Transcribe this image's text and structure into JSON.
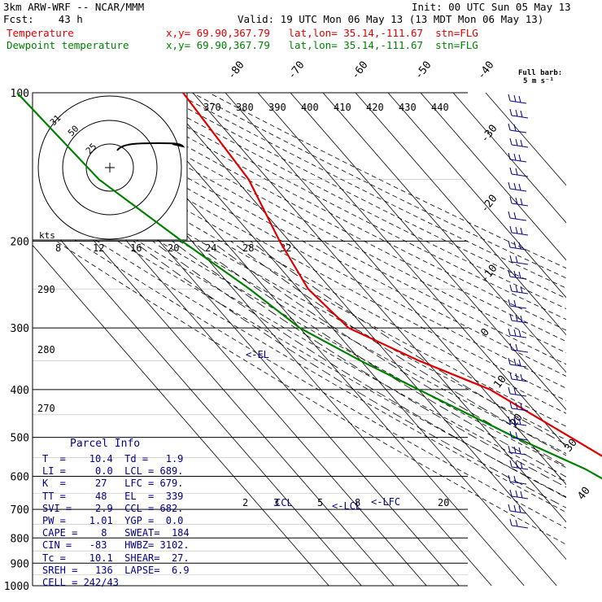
{
  "header": {
    "line1_left": "3km ARW-WRF -- NCAR/MMM",
    "line1_right": "Init: 00 UTC Sun 05 May 13",
    "line2_left": "Fcst:    43 h",
    "line2_right": "Valid: 19 UTC Mon 06 May 13 (13 MDT Mon 06 May 13)",
    "temp_label": "Temperature",
    "temp_info": "x,y= 69.90,367.79   lat,lon= 35.14,-111.67  stn=FLG",
    "dew_label": "Dewpoint temperature",
    "dew_info": "x,y= 69.90,367.79   lat,lon= 35.14,-111.67  stn=FLG",
    "barb_title": "Full barb:",
    "barb_unit": "5 m s⁻¹"
  },
  "colors": {
    "temperature": "#e00000",
    "dewpoint": "#008000",
    "parcel": "#00008b",
    "hodograph": "#000000"
  },
  "chart_data": {
    "type": "line",
    "diagram": "skew-T log-p",
    "pressure_levels": [
      100,
      200,
      300,
      400,
      500,
      600,
      700,
      800,
      900,
      1000
    ],
    "pressure_labels": [
      "100",
      "200",
      "300",
      "400",
      "500",
      "600",
      "700",
      "800",
      "900",
      "1000"
    ],
    "ylim": [
      1000,
      100
    ],
    "isotherm_labels": [
      "-80",
      "-70",
      "-60",
      "-50",
      "-40",
      "-30",
      "-20",
      "-10",
      "0",
      "10",
      "20",
      "30",
      "40"
    ],
    "theta_labels": [
      "370",
      "380",
      "390",
      "400",
      "410",
      "420",
      "430",
      "440"
    ],
    "theta_lower_labels": [
      "290",
      "280",
      "270"
    ],
    "mixing_ratio_labels": [
      "2",
      "3",
      "5",
      "8",
      "20"
    ],
    "speed_labels_unit": "kts",
    "speed_labels": [
      "8",
      "12",
      "16",
      "20",
      "24",
      "28",
      "32"
    ],
    "series": [
      {
        "name": "Temperature",
        "color": "#e00000",
        "points": [
          [
            -43,
            100
          ],
          [
            -46,
            150
          ],
          [
            -53,
            200
          ],
          [
            -57,
            250
          ],
          [
            -55,
            300
          ],
          [
            -42,
            350
          ],
          [
            -28,
            400
          ],
          [
            -16,
            500
          ],
          [
            -10,
            560
          ],
          [
            -7,
            600
          ],
          [
            -4,
            640
          ],
          [
            -1,
            700
          ],
          [
            4,
            760
          ],
          [
            12,
            790
          ]
        ]
      },
      {
        "name": "Dewpoint temperature",
        "color": "#008000",
        "points": [
          [
            -94,
            100
          ],
          [
            -92,
            150
          ],
          [
            -83,
            200
          ],
          [
            -75,
            250
          ],
          [
            -70,
            300
          ],
          [
            -60,
            350
          ],
          [
            -50,
            400
          ],
          [
            -33,
            500
          ],
          [
            -20,
            580
          ],
          [
            -16,
            620
          ],
          [
            -10,
            660
          ],
          [
            -6,
            700
          ],
          [
            -5,
            740
          ],
          [
            -10,
            780
          ]
        ]
      }
    ],
    "annotations": [
      "<-EL",
      "CCL",
      "<-LCL",
      "<-LFC"
    ],
    "wind_barbs_count": 30
  },
  "parcel_info": {
    "title": "Parcel Info",
    "rows": [
      "T  =    10.4  Td =   1.9",
      "LI =     0.0  LCL = 689.",
      "K  =     27   LFC = 679.",
      "TT =     48   EL  =  339",
      "SVI =    2.9  CCL = 682.",
      "PW =    1.01  YGP =  0.0",
      "CAPE =    8   SWEAT=  184",
      "CIN =   -83   HWBZ= 3102.",
      "Tc =    10.1  SHEAR=  27.",
      "SREH =   136  LAPSE=  6.9",
      "CELL = 242/43"
    ]
  }
}
